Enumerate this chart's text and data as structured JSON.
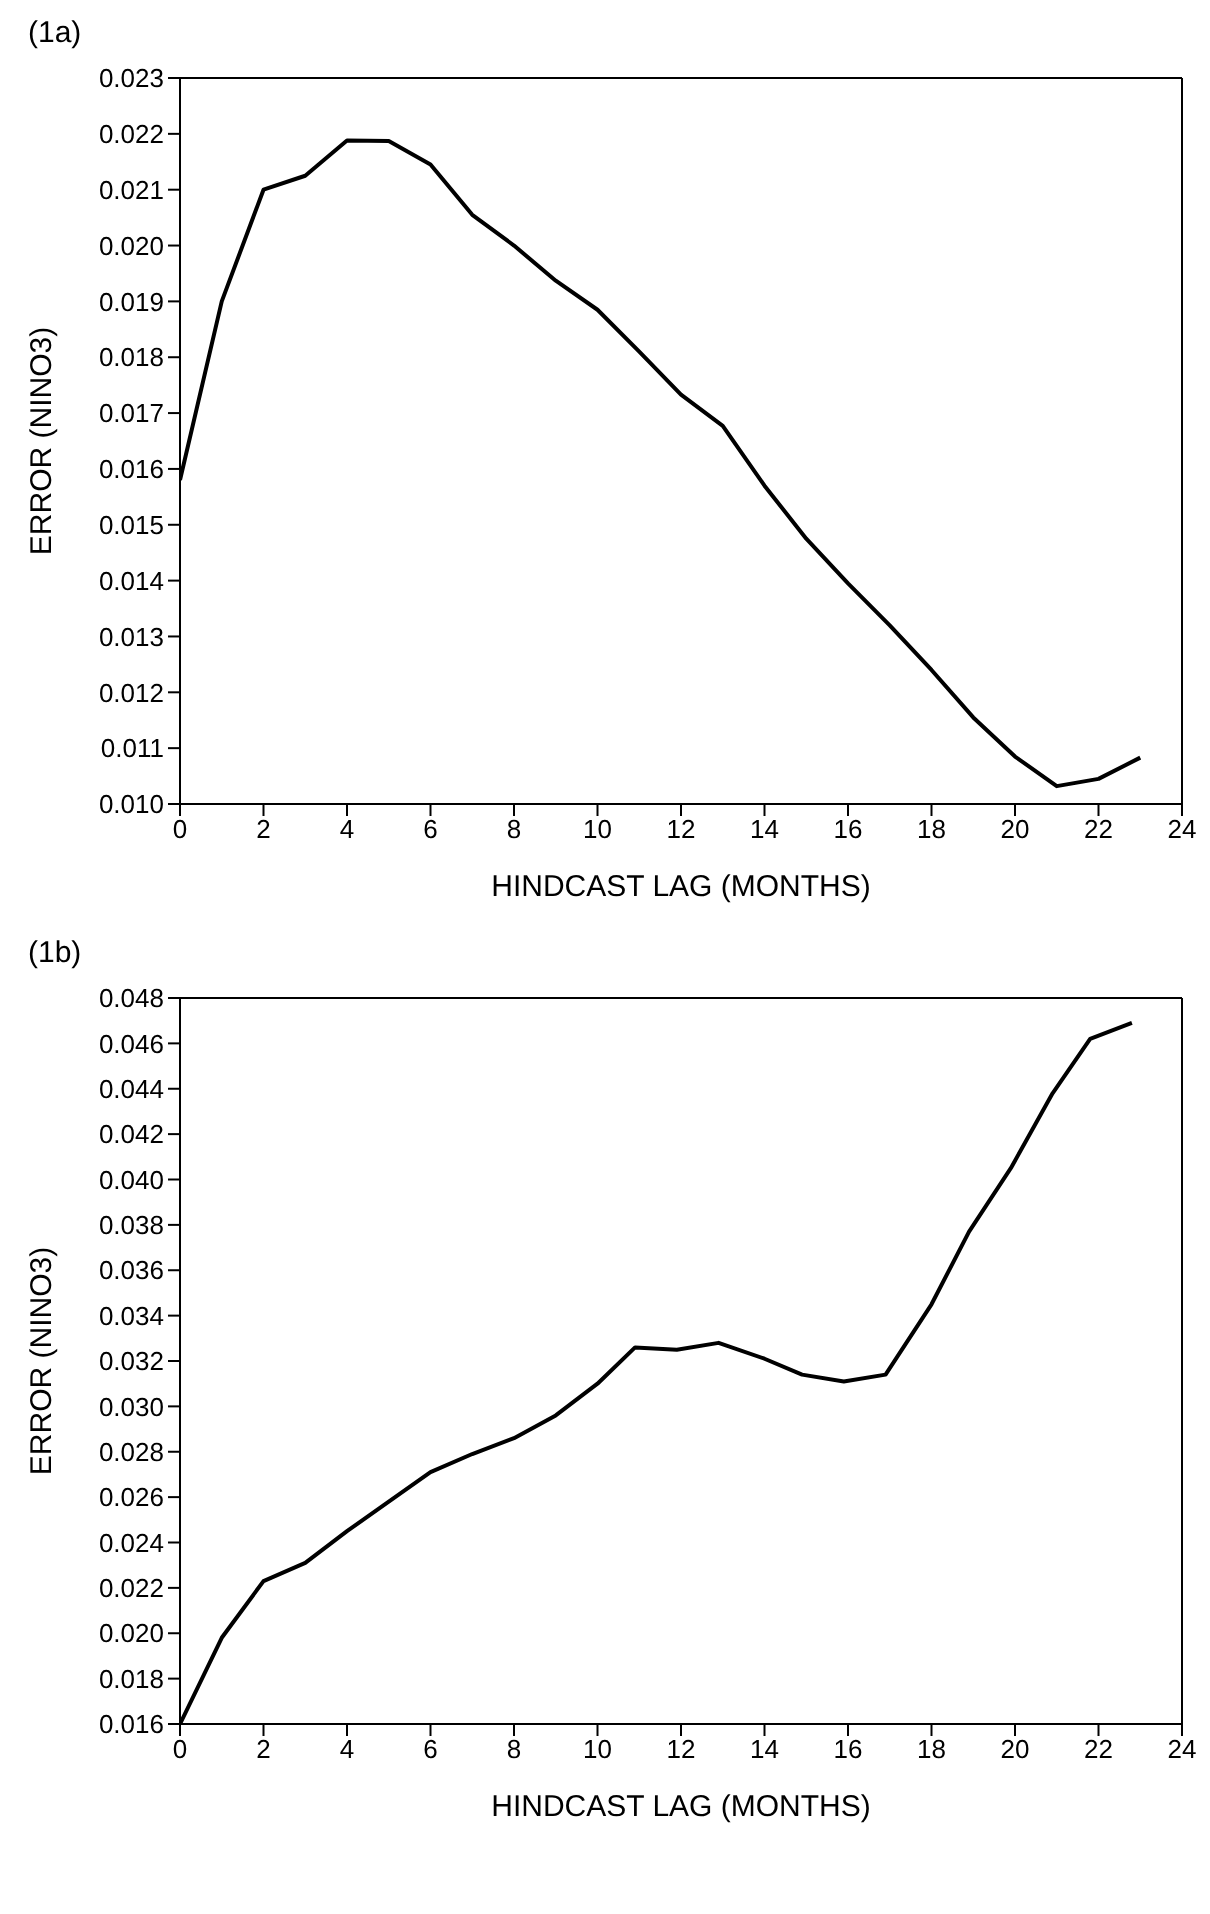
{
  "chart_data": [
    {
      "type": "line",
      "title": "(1a)",
      "xlabel": "HINDCAST LAG (MONTHS)",
      "ylabel": "ERROR (NINO3)",
      "grid": false,
      "legend": false,
      "marker": "none",
      "line_style": "solid",
      "x": [
        0,
        1,
        2,
        3,
        4,
        5,
        6,
        7,
        8,
        9,
        10,
        11,
        12,
        13,
        14,
        15,
        16,
        17,
        18,
        19,
        20,
        21,
        22,
        23
      ],
      "series": [
        {
          "color": "#000000",
          "values": [
            0.0158,
            0.019,
            0.021,
            0.02125,
            0.02188,
            0.02187,
            0.02145,
            0.02055,
            0.02,
            0.01937,
            0.01885,
            0.0181,
            0.01733,
            0.01677,
            0.0157,
            0.01475,
            0.01395,
            0.0132,
            0.0124,
            0.01155,
            0.01085,
            0.01032,
            0.01045,
            0.01083
          ]
        }
      ],
      "xlim": [
        0,
        24
      ],
      "xticks": [
        0,
        2,
        4,
        6,
        8,
        10,
        12,
        14,
        16,
        18,
        20,
        22,
        24
      ],
      "ylim": [
        0.01,
        0.023
      ],
      "yticks": [
        {
          "value": 0.01,
          "label": "0.010"
        },
        {
          "value": 0.011,
          "label": "0.011"
        },
        {
          "value": 0.012,
          "label": "0.012"
        },
        {
          "value": 0.013,
          "label": "0.013"
        },
        {
          "value": 0.014,
          "label": "0.014"
        },
        {
          "value": 0.015,
          "label": "0.015"
        },
        {
          "value": 0.016,
          "label": "0.016"
        },
        {
          "value": 0.017,
          "label": "0.017"
        },
        {
          "value": 0.018,
          "label": "0.018"
        },
        {
          "value": 0.019,
          "label": "0.019"
        },
        {
          "value": 0.02,
          "label": "0.020"
        },
        {
          "value": 0.021,
          "label": "0.021"
        },
        {
          "value": 0.022,
          "label": "0.022"
        },
        {
          "value": 0.023,
          "label": "0.023"
        }
      ]
    },
    {
      "type": "line",
      "title": "(1b)",
      "xlabel": "HINDCAST LAG (MONTHS)",
      "ylabel": "ERROR (NINO3)",
      "grid": false,
      "legend": false,
      "marker": "none",
      "line_style": "solid",
      "x": [
        0,
        1,
        2,
        3,
        4,
        5,
        6,
        7,
        8,
        9,
        10,
        10.9,
        11.9,
        12.9,
        14,
        14.9,
        15.9,
        16.9,
        18,
        18.9,
        19.9,
        20.9,
        21.8,
        22.8
      ],
      "series": [
        {
          "color": "#000000",
          "values": [
            0.016,
            0.0198,
            0.0223,
            0.0231,
            0.0245,
            0.0258,
            0.0271,
            0.0279,
            0.0286,
            0.0296,
            0.031,
            0.0326,
            0.0325,
            0.0328,
            0.0321,
            0.0314,
            0.0311,
            0.0314,
            0.0345,
            0.0377,
            0.0405,
            0.0438,
            0.0462,
            0.0469
          ]
        }
      ],
      "xlim": [
        0,
        24
      ],
      "xticks": [
        0,
        2,
        4,
        6,
        8,
        10,
        12,
        14,
        16,
        18,
        20,
        22,
        24
      ],
      "ylim": [
        0.016,
        0.048
      ],
      "yticks": [
        {
          "value": 0.016,
          "label": "0.016"
        },
        {
          "value": 0.018,
          "label": "0.018"
        },
        {
          "value": 0.02,
          "label": "0.020"
        },
        {
          "value": 0.022,
          "label": "0.022"
        },
        {
          "value": 0.024,
          "label": "0.024"
        },
        {
          "value": 0.026,
          "label": "0.026"
        },
        {
          "value": 0.028,
          "label": "0.028"
        },
        {
          "value": 0.03,
          "label": "0.030"
        },
        {
          "value": 0.032,
          "label": "0.032"
        },
        {
          "value": 0.034,
          "label": "0.034"
        },
        {
          "value": 0.036,
          "label": "0.036"
        },
        {
          "value": 0.038,
          "label": "0.038"
        },
        {
          "value": 0.04,
          "label": "0.040"
        },
        {
          "value": 0.042,
          "label": "0.042"
        },
        {
          "value": 0.044,
          "label": "0.044"
        },
        {
          "value": 0.046,
          "label": "0.046"
        },
        {
          "value": 0.048,
          "label": "0.048"
        }
      ]
    }
  ]
}
